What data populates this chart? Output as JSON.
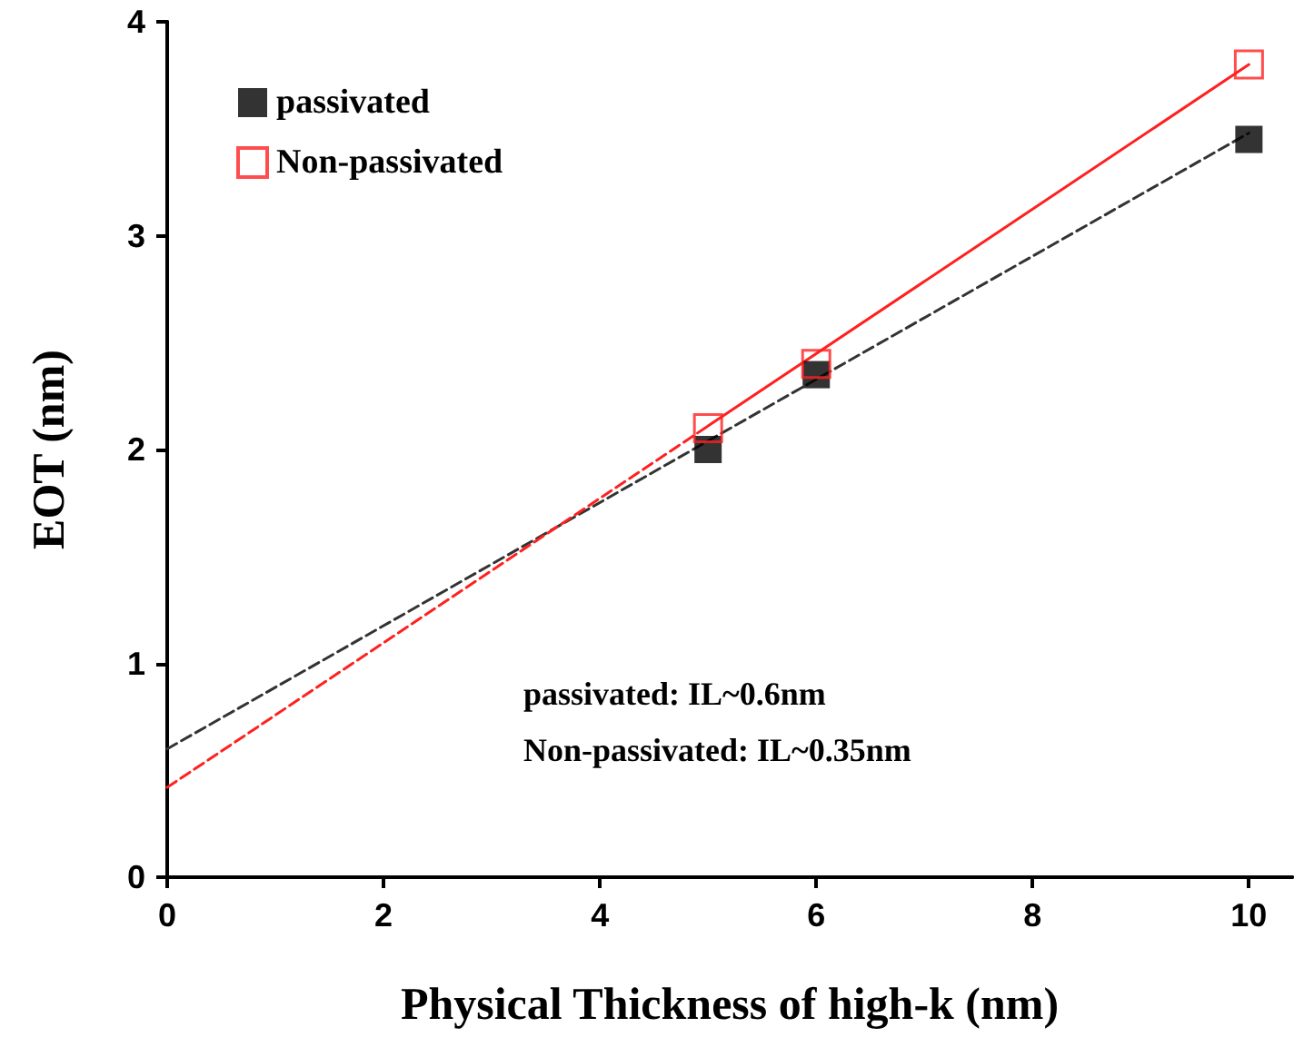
{
  "chart_data": {
    "type": "scatter",
    "xlabel": "Physical Thickness of high-k (nm)",
    "ylabel": "EOT (nm)",
    "xlim": [
      0,
      10.4
    ],
    "xticks": [
      0,
      2,
      4,
      6,
      8,
      10
    ],
    "ylim": [
      0,
      4
    ],
    "yticks": [
      0,
      1,
      2,
      3,
      4
    ],
    "grid": false,
    "legend": "top left",
    "marker": "square",
    "x": [
      5,
      6,
      10
    ],
    "series": [
      {
        "name": "passivated",
        "color": "#000000",
        "values": [
          2.0,
          2.35,
          3.45
        ]
      },
      {
        "name": "Non-passivated",
        "color": "#ff2020",
        "values": [
          2.1,
          2.4,
          3.8
        ]
      },
      {
        "type": "line",
        "color": "#333333",
        "line_style": "dashed",
        "marker": "none",
        "x": [
          0,
          10
        ],
        "values": [
          0.6,
          3.48
        ]
      },
      {
        "type": "line",
        "color": "#ff2020",
        "line_style": "dashed",
        "marker": "none",
        "x": [
          0,
          5
        ],
        "values": [
          0.42,
          2.11
        ]
      },
      {
        "type": "line",
        "color": "#ff2020",
        "line_style": "solid",
        "marker": "none",
        "x": [
          5,
          10
        ],
        "values": [
          2.11,
          3.8
        ]
      }
    ],
    "annotations": [
      "passivated: IL~0.6nm",
      "Non-passivated: IL~0.35nm"
    ]
  }
}
